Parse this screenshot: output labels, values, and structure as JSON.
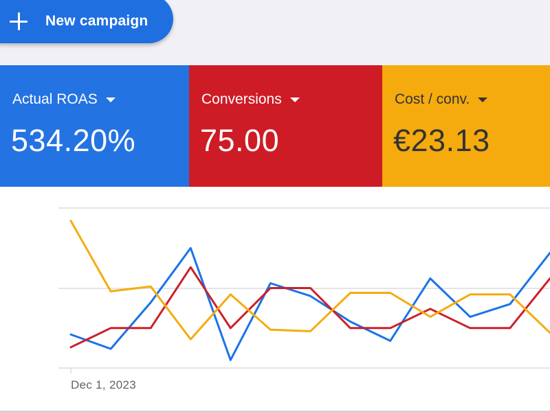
{
  "toolbar": {
    "new_campaign_label": "New campaign"
  },
  "scorecards": [
    {
      "metric": "Actual ROAS",
      "value": "534.20%",
      "color": "#2473e2"
    },
    {
      "metric": "Conversions",
      "value": "75.00",
      "color": "#cd1c26"
    },
    {
      "metric": "Cost / conv.",
      "value": "€23.13",
      "color": "#f5ab0e"
    }
  ],
  "chart_data": {
    "type": "line",
    "x_tick_labels": [
      "Dec 1, 2023"
    ],
    "grid": true,
    "ylim": [
      0,
      1
    ],
    "series": [
      {
        "color": "#1a73e8",
        "values": [
          0.21,
          0.12,
          0.41,
          0.75,
          0.05,
          0.53,
          0.45,
          0.29,
          0.17,
          0.56,
          0.32,
          0.4,
          0.72
        ]
      },
      {
        "color": "#cc1f2a",
        "values": [
          0.13,
          0.25,
          0.25,
          0.63,
          0.25,
          0.5,
          0.5,
          0.25,
          0.25,
          0.37,
          0.25,
          0.25,
          0.56
        ]
      },
      {
        "color": "#f5ab0e",
        "values": [
          0.92,
          0.48,
          0.51,
          0.18,
          0.46,
          0.24,
          0.23,
          0.47,
          0.47,
          0.32,
          0.46,
          0.46,
          0.22
        ]
      }
    ]
  }
}
